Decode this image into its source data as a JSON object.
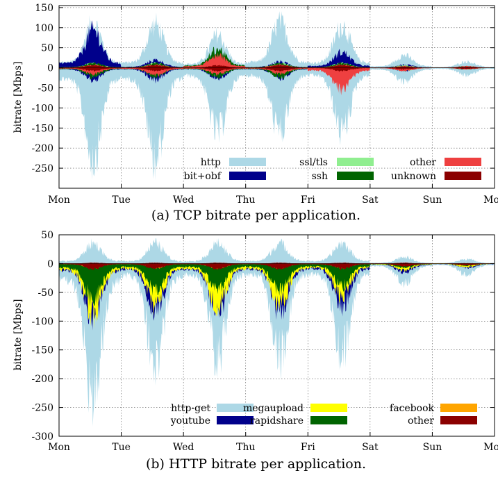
{
  "chart_data": [
    {
      "id": "a",
      "type": "area",
      "xlabel": "",
      "ylabel": "bitrate [Mbps]",
      "xlim": [
        0,
        7
      ],
      "ylim": [
        -300,
        155
      ],
      "yticks": [
        150,
        100,
        50,
        0,
        -50,
        -100,
        -150,
        -200,
        -250
      ],
      "xticks": [
        {
          "x": 0,
          "label": "Mon"
        },
        {
          "x": 1,
          "label": "Tue"
        },
        {
          "x": 2,
          "label": "Wed"
        },
        {
          "x": 3,
          "label": "Thu"
        },
        {
          "x": 4,
          "label": "Fri"
        },
        {
          "x": 5,
          "label": "Sat"
        },
        {
          "x": 6,
          "label": "Sun"
        },
        {
          "x": 7,
          "label": "Mon"
        }
      ],
      "grid": true,
      "legend_placement": "bottom-right",
      "caption": "(a) TCP bitrate per application.",
      "series": [
        {
          "name": "http",
          "color": "#add8e6",
          "peaks_up": [
            145,
            140,
            105,
            145,
            135,
            40,
            20
          ],
          "peaks_down": [
            -290,
            -290,
            -210,
            -210,
            -205,
            -45,
            -25
          ]
        },
        {
          "name": "bit+obf",
          "color": "#00008b",
          "peaks_up": [
            120,
            25,
            20,
            20,
            50,
            10,
            5
          ],
          "peaks_down": [
            -40,
            -40,
            -35,
            -35,
            -40,
            -10,
            -5
          ]
        },
        {
          "name": "ssl/tls",
          "color": "#90ee90",
          "peaks_up": [
            15,
            15,
            15,
            15,
            15,
            8,
            5
          ],
          "peaks_down": [
            -25,
            -25,
            -25,
            -25,
            -25,
            -10,
            -5
          ]
        },
        {
          "name": "ssh",
          "color": "#006400",
          "peaks_up": [
            15,
            15,
            60,
            15,
            15,
            5,
            5
          ],
          "peaks_down": [
            -30,
            -30,
            -30,
            -30,
            -30,
            -5,
            -5
          ]
        },
        {
          "name": "other",
          "color": "#ee4040",
          "peaks_up": [
            10,
            10,
            40,
            10,
            10,
            5,
            5
          ],
          "peaks_down": [
            -20,
            -25,
            -20,
            -20,
            -70,
            -10,
            -5
          ]
        },
        {
          "name": "unknown",
          "color": "#8b0000",
          "peaks_up": [
            8,
            8,
            8,
            8,
            8,
            4,
            3
          ],
          "peaks_down": [
            -10,
            -10,
            -10,
            -10,
            -10,
            -5,
            -3
          ]
        }
      ]
    },
    {
      "id": "b",
      "type": "area",
      "xlabel": "",
      "ylabel": "bitrate [Mbps]",
      "xlim": [
        0,
        7
      ],
      "ylim": [
        -300,
        50
      ],
      "yticks": [
        50,
        0,
        -50,
        -100,
        -150,
        -200,
        -250,
        -300
      ],
      "xticks": [
        {
          "x": 0,
          "label": "Mon"
        },
        {
          "x": 1,
          "label": "Tue"
        },
        {
          "x": 2,
          "label": "Wed"
        },
        {
          "x": 3,
          "label": "Thu"
        },
        {
          "x": 4,
          "label": "Fri"
        },
        {
          "x": 5,
          "label": "Sat"
        },
        {
          "x": 6,
          "label": "Sun"
        },
        {
          "x": 7,
          "label": "Mon"
        }
      ],
      "grid": true,
      "legend_placement": "bottom-right",
      "caption": "(b) HTTP bitrate per application.",
      "series": [
        {
          "name": "http-get",
          "color": "#add8e6",
          "peaks_up": [
            45,
            45,
            45,
            45,
            45,
            15,
            10
          ],
          "peaks_down": [
            -300,
            -230,
            -210,
            -205,
            -200,
            -45,
            -25
          ]
        },
        {
          "name": "youtube",
          "color": "#00008b",
          "peaks_up": [
            0,
            0,
            0,
            0,
            0,
            0,
            0
          ],
          "peaks_down": [
            -130,
            -110,
            -110,
            -110,
            -95,
            -20,
            -10
          ]
        },
        {
          "name": "megaupload",
          "color": "#ffff00",
          "peaks_up": [
            0,
            0,
            0,
            0,
            0,
            0,
            0
          ],
          "peaks_down": [
            -115,
            -95,
            -100,
            -95,
            -75,
            -15,
            -8
          ]
        },
        {
          "name": "rapidshare",
          "color": "#006400",
          "peaks_up": [
            0,
            0,
            0,
            0,
            0,
            0,
            0
          ],
          "peaks_down": [
            -80,
            -60,
            -60,
            -60,
            -50,
            -10,
            -5
          ]
        },
        {
          "name": "facebook",
          "color": "#ffa500",
          "peaks_up": [
            0,
            0,
            0,
            0,
            0,
            0,
            0
          ],
          "peaks_down": [
            -10,
            -10,
            -10,
            -10,
            -10,
            -5,
            -3
          ]
        },
        {
          "name": "other",
          "color": "#8b0000",
          "peaks_up": [
            2,
            2,
            2,
            2,
            2,
            2,
            1
          ],
          "peaks_down": [
            -12,
            -12,
            -12,
            -12,
            -12,
            -6,
            -4
          ]
        }
      ]
    }
  ]
}
